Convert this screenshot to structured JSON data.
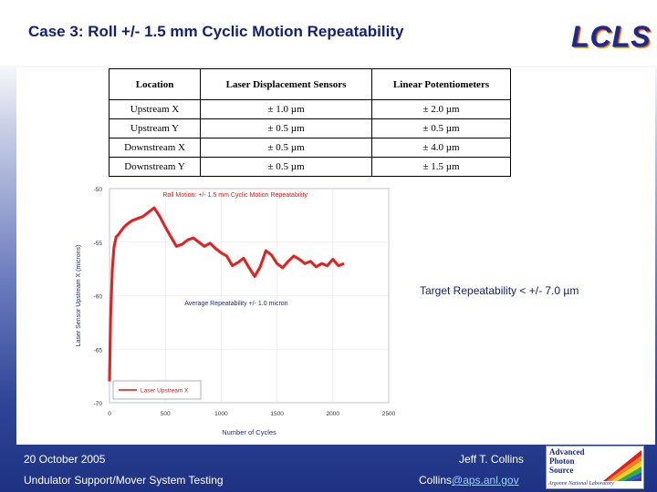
{
  "slide": {
    "title": "Case 3: Roll +/- 1.5 mm Cyclic Motion Repeatability",
    "logo_text": "LCLS",
    "target_note": "Target Repeatability < +/- 7.0 µm"
  },
  "table": {
    "headers": [
      "Location",
      "Laser Displacement Sensors",
      "Linear Potentiometers"
    ],
    "rows": [
      [
        "Upstream X",
        "± 1.0 µm",
        "± 2.0 µm"
      ],
      [
        "Upstream Y",
        "± 0.5 µm",
        "± 0.5 µm"
      ],
      [
        "Downstream X",
        "± 0.5 µm",
        "± 4.0 µm"
      ],
      [
        "Downstream Y",
        "± 0.5 µm",
        "± 1.5 µm"
      ]
    ]
  },
  "chart_data": {
    "type": "line",
    "title": "Roll Motion: +/- 1.5 mm Cyclic Motion Repeatability",
    "xlabel": "Number of Cycles",
    "ylabel": "Laser Sensor Upstream X (microns)",
    "xlim": [
      0,
      2500
    ],
    "ylim": [
      -70,
      -50
    ],
    "x_ticks": [
      0,
      500,
      1000,
      1500,
      2000,
      2500
    ],
    "y_ticks": [
      -50,
      -55,
      -60,
      -65,
      -70
    ],
    "annotation": "Average Repeatability +/- 1.0 micron",
    "legend_position": "bottom-left",
    "line_color": "#e01010",
    "series": [
      {
        "name": "Laser Upstream X",
        "x": [
          0,
          10,
          25,
          40,
          60,
          80,
          100,
          130,
          160,
          200,
          250,
          300,
          350,
          400,
          450,
          500,
          550,
          600,
          650,
          700,
          750,
          800,
          850,
          900,
          950,
          1000,
          1050,
          1100,
          1150,
          1200,
          1250,
          1300,
          1350,
          1400,
          1450,
          1500,
          1550,
          1600,
          1650,
          1700,
          1750,
          1800,
          1850,
          1900,
          1950,
          2000,
          2050,
          2100
        ],
        "y": [
          -68,
          -62,
          -57.5,
          -55.5,
          -54.5,
          -54.3,
          -54.0,
          -53.6,
          -53.3,
          -53.0,
          -52.8,
          -52.6,
          -52.2,
          -51.8,
          -52.6,
          -53.6,
          -54.5,
          -55.4,
          -55.2,
          -54.8,
          -54.6,
          -55.0,
          -55.4,
          -55.1,
          -55.6,
          -56.0,
          -56.3,
          -57.2,
          -56.9,
          -56.5,
          -57.4,
          -58.2,
          -57.3,
          -55.8,
          -56.2,
          -57.0,
          -57.4,
          -56.8,
          -56.3,
          -56.6,
          -57.0,
          -56.8,
          -57.3,
          -57.0,
          -57.2,
          -56.6,
          -57.2,
          -57.0
        ]
      }
    ]
  },
  "footer": {
    "date": "20 October  2005",
    "system": "Undulator Support/Mover System Testing",
    "author": "Jeff T. Collins",
    "email_user": "Collins",
    "email_domain": "@aps.anl.gov",
    "aps_logo_lines": [
      "Advanced",
      "Photon",
      "Source"
    ],
    "aps_logo_small": "Argonne National Laboratory"
  }
}
